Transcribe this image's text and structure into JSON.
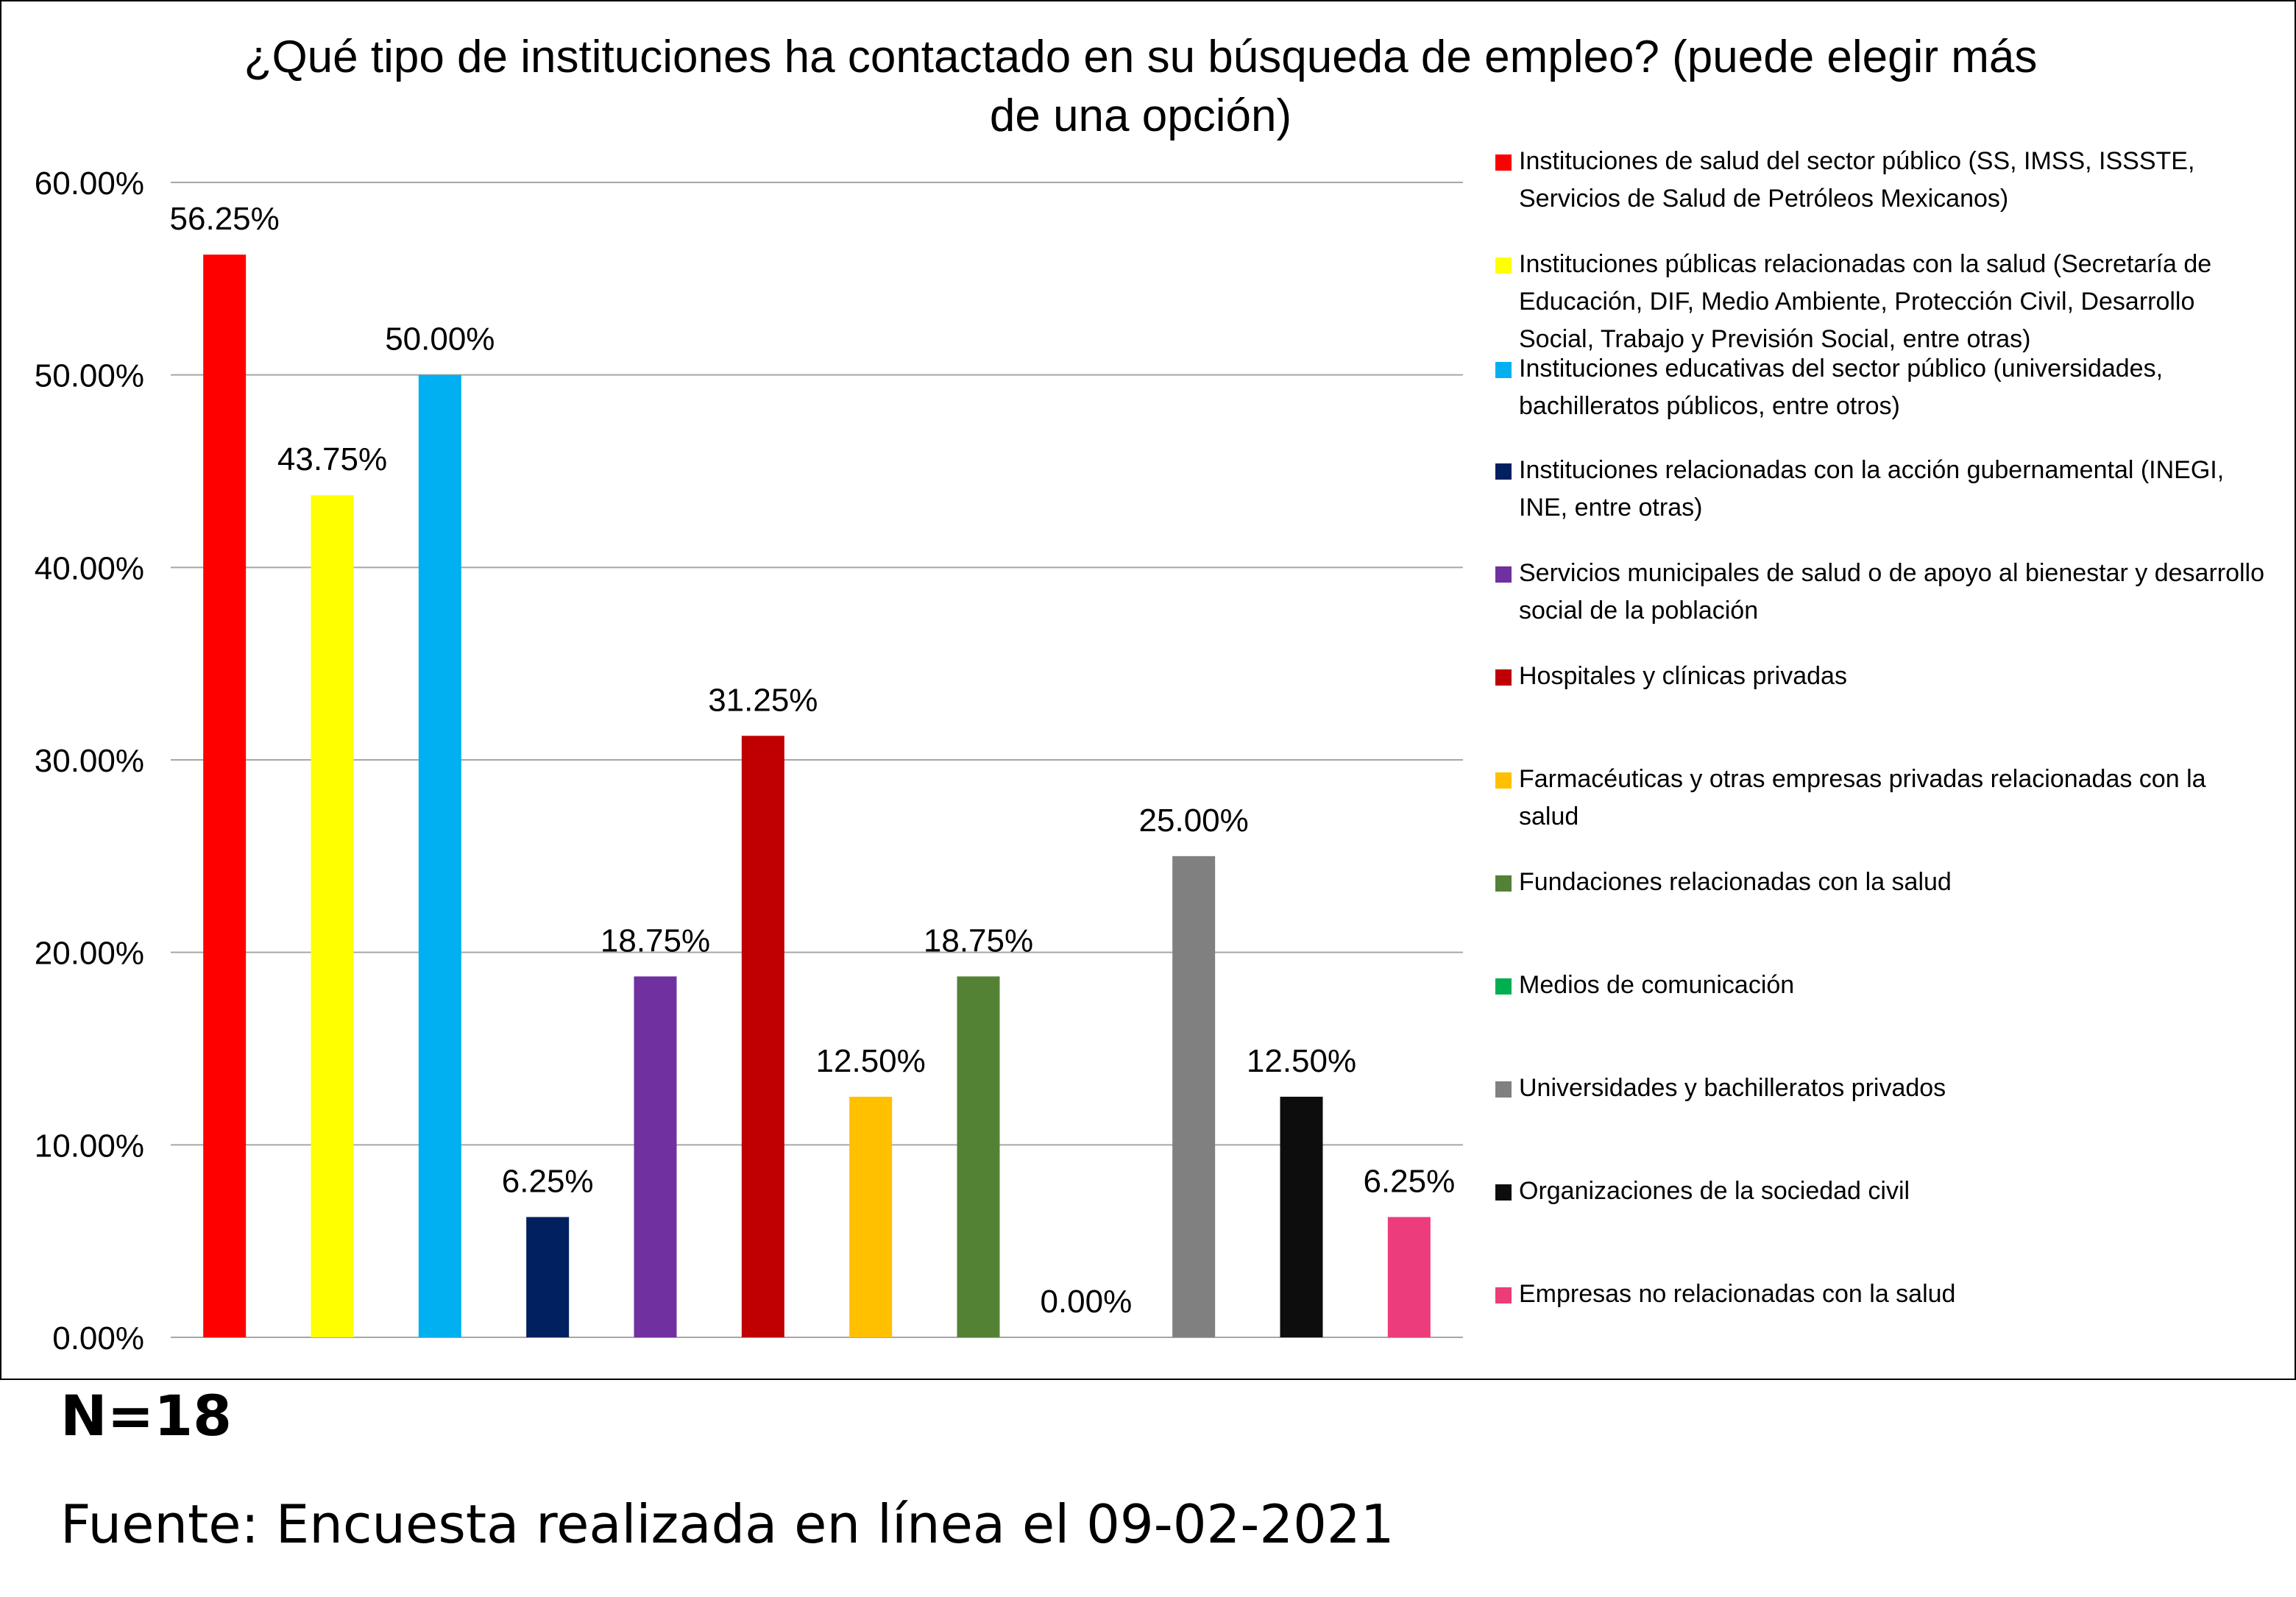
{
  "chart_data": {
    "type": "bar",
    "title": "¿Qué tipo de instituciones ha contactado en su búsqueda de empleo? (puede elegir más de una opción)",
    "xlabel": "",
    "ylabel": "",
    "ylim": [
      0,
      0.6
    ],
    "y_ticks": [
      0,
      0.1,
      0.2,
      0.3,
      0.4,
      0.5,
      0.6
    ],
    "y_tick_labels": [
      "0.00%",
      "10.00%",
      "20.00%",
      "30.00%",
      "40.00%",
      "50.00%",
      "60.00%"
    ],
    "grid": "horizontal",
    "legend_position": "right",
    "categories": [
      "Instituciones de salud del sector público (SS, IMSS, ISSSTE, Servicios de Salud de Petróleos Mexicanos)",
      "Instituciones públicas relacionadas con la salud (Secretaría de Educación, DIF, Medio Ambiente, Protección Civil, Desarrollo Social, Trabajo y Previsión Social, entre otras)",
      "Instituciones educativas del sector público (universidades, bachilleratos públicos, entre otros)",
      "Instituciones relacionadas con la acción gubernamental (INEGI, INE, entre otras)",
      "Servicios municipales de salud o de apoyo al bienestar y desarrollo social de la población",
      "Hospitales y clínicas privadas",
      "Farmacéuticas y otras empresas privadas relacionadas con la salud",
      "Fundaciones relacionadas con la salud",
      "Medios de comunicación",
      "Universidades y bachilleratos privados",
      "Organizaciones de la sociedad civil",
      "Empresas no relacionadas con la salud"
    ],
    "values": [
      0.5625,
      0.4375,
      0.5,
      0.0625,
      0.1875,
      0.3125,
      0.125,
      0.1875,
      0.0,
      0.25,
      0.125,
      0.0625
    ],
    "data_labels": [
      "56.25%",
      "43.75%",
      "50.00%",
      "6.25%",
      "18.75%",
      "31.25%",
      "12.50%",
      "18.75%",
      "0.00%",
      "25.00%",
      "12.50%",
      "6.25%"
    ],
    "colors": [
      "#FF0000",
      "#FFFF00",
      "#00B0F0",
      "#002060",
      "#7030A0",
      "#C00000",
      "#FFC000",
      "#548235",
      "#00B050",
      "#808080",
      "#0D0D0D",
      "#EC3C7B"
    ]
  },
  "notes": {
    "sample_size": "N=18",
    "source": "Fuente: Encuesta realizada en línea el 09-02-2021"
  }
}
